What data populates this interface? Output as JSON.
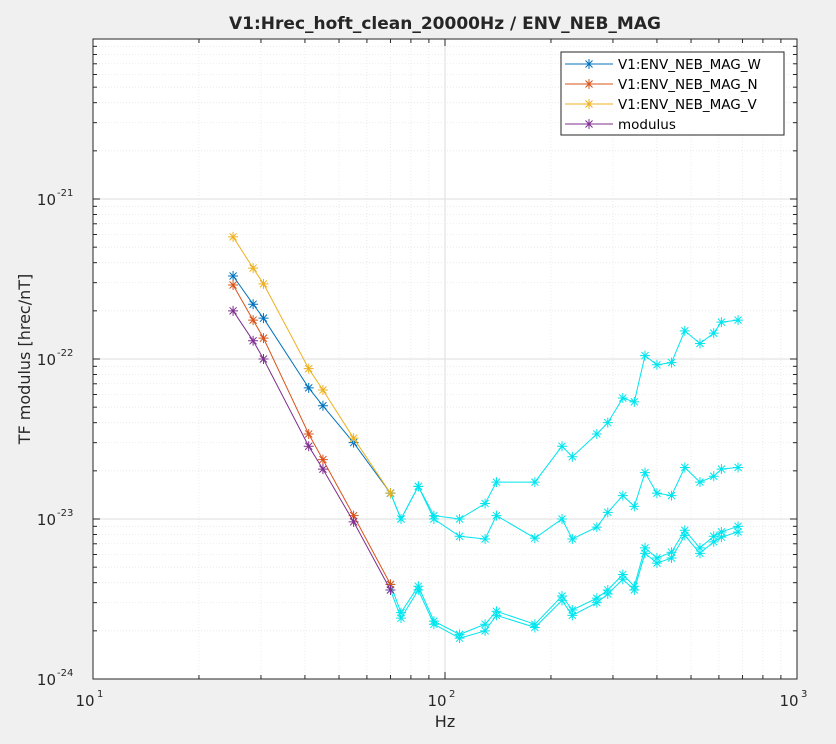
{
  "chart_data": {
    "type": "line",
    "title": "V1:Hrec_hoft_clean_20000Hz / ENV_NEB_MAG",
    "xlabel": "Hz",
    "ylabel": "TF modulus [hrec/nT]",
    "xscale": "log",
    "yscale": "log",
    "xlim": [
      10,
      1000
    ],
    "ylim": [
      1e-24,
      1e-20
    ],
    "grid": true,
    "legend_position": "top-right",
    "x_ticks": [
      {
        "base": "10",
        "exp": "1"
      },
      {
        "base": "10",
        "exp": "2"
      },
      {
        "base": "10",
        "exp": "3"
      }
    ],
    "y_ticks": [
      {
        "base": "10",
        "exp": "-24"
      },
      {
        "base": "10",
        "exp": "-23"
      },
      {
        "base": "10",
        "exp": "-22"
      },
      {
        "base": "10",
        "exp": "-21"
      }
    ],
    "series": [
      {
        "name": "V1:ENV_NEB_MAG_W",
        "color": "#0072bd",
        "x": [
          25,
          28.5,
          30.5,
          41,
          45,
          55,
          70
        ],
        "y": [
          3.3e-22,
          2.2e-22,
          1.8e-22,
          6.6e-23,
          5.1e-23,
          3e-23,
          1.45e-23
        ]
      },
      {
        "name": "V1:ENV_NEB_MAG_N",
        "color": "#d95319",
        "x": [
          25,
          28.5,
          30.5,
          41,
          45,
          55,
          70
        ],
        "y": [
          2.9e-22,
          1.75e-22,
          1.35e-22,
          3.4e-23,
          2.35e-23,
          1.05e-23,
          3.9e-24
        ]
      },
      {
        "name": "V1:ENV_NEB_MAG_V",
        "color": "#edb120",
        "x": [
          25,
          28.5,
          30.5,
          41,
          45,
          55,
          70
        ],
        "y": [
          5.8e-22,
          3.7e-22,
          2.95e-22,
          8.7e-23,
          6.4e-23,
          3.2e-23,
          1.45e-23
        ]
      },
      {
        "name": "modulus",
        "color": "#7e2f8e",
        "x": [
          25,
          28.5,
          30.5,
          41,
          45,
          55,
          70
        ],
        "y": [
          2e-22,
          1.3e-22,
          1e-22,
          2.85e-23,
          2.05e-23,
          9.6e-24,
          3.6e-24
        ]
      }
    ],
    "extra_series": [
      {
        "color": "#00e5ee",
        "x": [
          70,
          75,
          84,
          93,
          110,
          130,
          140,
          180,
          215,
          230,
          270,
          290,
          320,
          345,
          370,
          400,
          440,
          480,
          530,
          580,
          610,
          680
        ],
        "y": [
          1.45e-23,
          1e-23,
          1.6e-23,
          1.05e-23,
          1e-23,
          1.25e-23,
          1.7e-23,
          1.7e-23,
          2.85e-23,
          2.45e-23,
          3.4e-23,
          4e-23,
          5.7e-23,
          5.4e-23,
          1.05e-22,
          9.2e-23,
          9.5e-23,
          1.5e-22,
          1.25e-22,
          1.45e-22,
          1.7e-22,
          1.75e-22
        ]
      },
      {
        "color": "#00e5ee",
        "x": [
          70,
          75,
          84,
          93,
          110,
          130,
          140,
          180,
          215,
          230,
          270,
          290,
          320,
          345,
          370,
          400,
          440,
          480,
          530,
          580,
          610,
          680
        ],
        "y": [
          1.45e-23,
          1e-23,
          1.6e-23,
          1e-23,
          7.8e-24,
          7.5e-24,
          1.05e-23,
          7.6e-24,
          1e-23,
          7.5e-24,
          8.9e-24,
          1.1e-23,
          1.4e-23,
          1.2e-23,
          1.95e-23,
          1.45e-23,
          1.4e-23,
          2.1e-23,
          1.7e-23,
          1.85e-23,
          2.05e-23,
          2.1e-23
        ]
      },
      {
        "color": "#00e5ee",
        "x": [
          70,
          75,
          84,
          93,
          110,
          130,
          140,
          180,
          215,
          230,
          270,
          290,
          320,
          345,
          370,
          400,
          440,
          480,
          530,
          580,
          610,
          680
        ],
        "y": [
          3.9e-24,
          2.6e-24,
          3.8e-24,
          2.3e-24,
          1.9e-24,
          2.2e-24,
          2.65e-24,
          2.2e-24,
          3.3e-24,
          2.7e-24,
          3.2e-24,
          3.6e-24,
          4.5e-24,
          3.8e-24,
          6.6e-24,
          5.7e-24,
          6.2e-24,
          8.5e-24,
          6.6e-24,
          7.8e-24,
          8.3e-24,
          9e-24
        ]
      },
      {
        "color": "#00e5ee",
        "x": [
          70,
          75,
          84,
          93,
          110,
          130,
          140,
          180,
          215,
          230,
          270,
          290,
          320,
          345,
          370,
          400,
          440,
          480,
          530,
          580,
          610,
          680
        ],
        "y": [
          3.6e-24,
          2.4e-24,
          3.6e-24,
          2.2e-24,
          1.8e-24,
          2e-24,
          2.5e-24,
          2.1e-24,
          3.1e-24,
          2.5e-24,
          3e-24,
          3.4e-24,
          4.2e-24,
          3.6e-24,
          6.1e-24,
          5.3e-24,
          5.7e-24,
          7.9e-24,
          6.1e-24,
          7.2e-24,
          7.7e-24,
          8.3e-24
        ]
      }
    ]
  }
}
